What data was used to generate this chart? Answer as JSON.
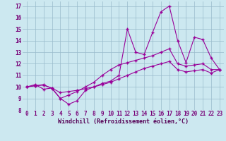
{
  "background_color": "#cce8f0",
  "grid_color": "#99bbcc",
  "line_color": "#990099",
  "xlim": [
    -0.5,
    23.5
  ],
  "ylim": [
    8,
    17.4
  ],
  "xticks": [
    0,
    1,
    2,
    3,
    4,
    5,
    6,
    7,
    8,
    9,
    10,
    11,
    12,
    13,
    14,
    15,
    16,
    17,
    18,
    19,
    20,
    21,
    22,
    23
  ],
  "yticks": [
    8,
    9,
    10,
    11,
    12,
    13,
    14,
    15,
    16,
    17
  ],
  "xlabel": "Windchill (Refroidissement éolien,°C)",
  "series1_x": [
    0,
    1,
    2,
    3,
    4,
    5,
    6,
    7,
    8,
    9,
    10,
    11,
    12,
    13,
    14,
    15,
    16,
    17,
    18,
    19,
    20,
    21,
    22,
    23
  ],
  "series1_y": [
    10.0,
    10.2,
    9.8,
    9.9,
    9.0,
    8.5,
    8.8,
    9.7,
    10.0,
    10.3,
    10.5,
    11.0,
    15.0,
    13.0,
    12.8,
    14.7,
    16.5,
    17.0,
    14.0,
    12.1,
    14.3,
    14.1,
    12.5,
    11.5
  ],
  "series2_x": [
    0,
    1,
    2,
    3,
    4,
    5,
    6,
    7,
    8,
    9,
    10,
    11,
    12,
    13,
    14,
    15,
    16,
    17,
    18,
    19,
    20,
    21,
    22,
    23
  ],
  "series2_y": [
    10.0,
    10.1,
    10.15,
    9.9,
    9.5,
    9.6,
    9.7,
    9.85,
    10.0,
    10.2,
    10.4,
    10.7,
    11.0,
    11.3,
    11.6,
    11.8,
    12.0,
    12.2,
    11.5,
    11.3,
    11.4,
    11.5,
    11.2,
    11.5
  ],
  "series3_x": [
    0,
    1,
    2,
    3,
    4,
    5,
    6,
    7,
    8,
    9,
    10,
    11,
    12,
    13,
    14,
    15,
    16,
    17,
    18,
    19,
    20,
    21,
    22,
    23
  ],
  "series3_y": [
    10.0,
    10.1,
    10.2,
    9.85,
    9.0,
    9.3,
    9.6,
    10.0,
    10.4,
    11.0,
    11.5,
    11.9,
    12.1,
    12.3,
    12.5,
    12.7,
    13.0,
    13.3,
    12.0,
    11.8,
    11.9,
    12.0,
    11.5,
    11.5
  ],
  "marker": "+",
  "markersize": 3.5,
  "markeredgewidth": 1.0,
  "linewidth": 0.8,
  "tick_fontsize": 5.5,
  "label_fontsize": 6.0,
  "tick_color": "#770077",
  "label_color": "#550055"
}
